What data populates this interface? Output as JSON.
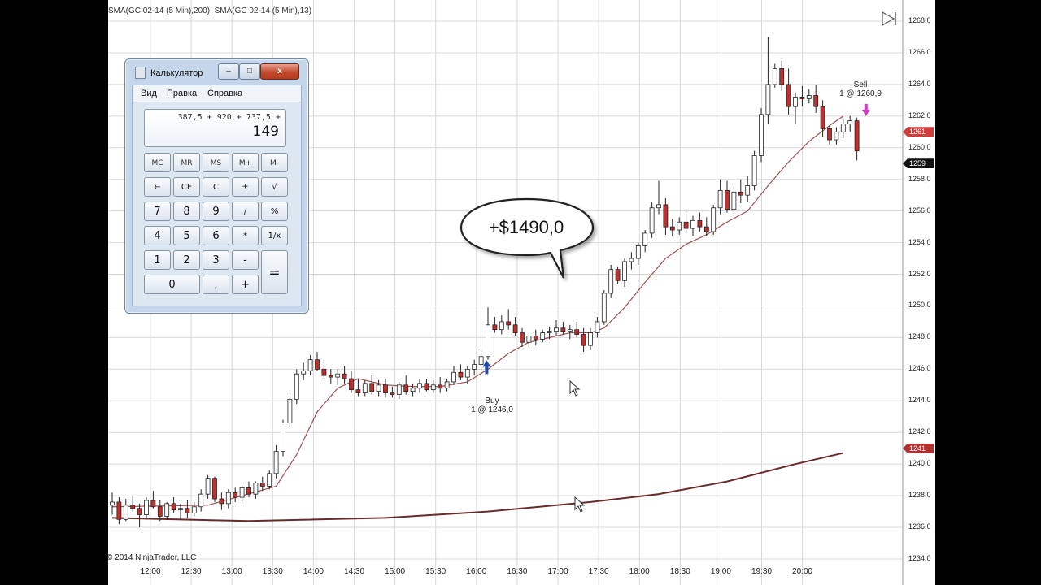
{
  "chart": {
    "indicator_label": "SMA(GC 02-14 (5 Min),200), SMA(GC 02-14 (5 Min),13)",
    "copyright": "© 2014 NinjaTrader, LLC",
    "profit_bubble": "+$1490,0",
    "buy_marker": {
      "label": "Buy",
      "detail": "1 @ 1246,0"
    },
    "sell_marker": {
      "label": "Sell",
      "detail": "1 @ 1260,9"
    },
    "price_ticks": [
      "1268,0",
      "1266,0",
      "1264,0",
      "1262,0",
      "1260,0",
      "1258,0",
      "1256,0",
      "1254,0",
      "1252,0",
      "1250,0",
      "1248,0",
      "1246,0",
      "1244,0",
      "1242,0",
      "1240,0",
      "1238,0",
      "1236,0",
      "1234,0"
    ],
    "price_tags": [
      {
        "text": "1261",
        "color": "#d23c3c"
      },
      {
        "text": "1259",
        "color": "#111111"
      },
      {
        "text": "1241",
        "color": "#b03030"
      }
    ],
    "time_ticks": [
      "12:00",
      "12:30",
      "13:00",
      "13:30",
      "14:00",
      "14:30",
      "15:00",
      "15:30",
      "16:00",
      "16:30",
      "17:00",
      "17:30",
      "18:00",
      "18:30",
      "19:00",
      "19:30",
      "20:00"
    ],
    "colors": {
      "up": "#ffffff",
      "down": "#c0302f",
      "wick": "#222222",
      "sma13": "#a05050",
      "sma200": "#6b2a2a",
      "grid": "#d8d8d8",
      "buy_arrow": "#1e4fb0",
      "sell_arrow": "#d03cc4"
    }
  },
  "chart_data": {
    "type": "candlestick",
    "xlabel": "",
    "ylabel": "",
    "ylim": [
      1234,
      1268
    ],
    "candles": [
      [
        1237.4,
        1238.2,
        1236.8,
        1237.6
      ],
      [
        1237.6,
        1237.9,
        1236.2,
        1236.5
      ],
      [
        1236.5,
        1237.8,
        1236.4,
        1237.4
      ],
      [
        1237.4,
        1238.0,
        1237.0,
        1237.2
      ],
      [
        1237.2,
        1237.5,
        1236.0,
        1236.8
      ],
      [
        1236.8,
        1237.9,
        1236.5,
        1237.7
      ],
      [
        1237.7,
        1238.3,
        1237.2,
        1237.3
      ],
      [
        1237.3,
        1237.7,
        1236.4,
        1236.7
      ],
      [
        1236.7,
        1237.6,
        1236.5,
        1237.5
      ],
      [
        1237.5,
        1237.9,
        1236.9,
        1237.1
      ],
      [
        1237.1,
        1237.5,
        1236.5,
        1237.2
      ],
      [
        1237.2,
        1237.7,
        1236.6,
        1236.9
      ],
      [
        1236.9,
        1237.6,
        1236.7,
        1237.3
      ],
      [
        1237.3,
        1238.4,
        1237.0,
        1238.1
      ],
      [
        1238.1,
        1239.3,
        1237.8,
        1239.1
      ],
      [
        1239.1,
        1239.2,
        1237.6,
        1237.8
      ],
      [
        1237.8,
        1238.2,
        1237.1,
        1237.5
      ],
      [
        1237.5,
        1238.4,
        1237.2,
        1238.2
      ],
      [
        1238.2,
        1238.5,
        1237.6,
        1237.9
      ],
      [
        1237.9,
        1238.7,
        1237.5,
        1238.5
      ],
      [
        1238.5,
        1238.9,
        1237.9,
        1238.1
      ],
      [
        1238.1,
        1238.9,
        1237.8,
        1238.8
      ],
      [
        1238.8,
        1239.2,
        1238.3,
        1238.6
      ],
      [
        1238.6,
        1239.6,
        1238.4,
        1239.4
      ],
      [
        1239.4,
        1241.2,
        1239.1,
        1240.8
      ],
      [
        1240.8,
        1242.8,
        1240.5,
        1242.6
      ],
      [
        1242.6,
        1244.3,
        1242.3,
        1244.1
      ],
      [
        1244.1,
        1246.0,
        1243.8,
        1245.7
      ],
      [
        1245.7,
        1246.4,
        1245.3,
        1245.9
      ],
      [
        1245.9,
        1246.9,
        1245.6,
        1246.6
      ],
      [
        1246.6,
        1247.1,
        1245.9,
        1246.0
      ],
      [
        1246.0,
        1246.6,
        1245.4,
        1245.6
      ],
      [
        1245.6,
        1246.0,
        1245.1,
        1245.5
      ],
      [
        1245.5,
        1246.0,
        1245.0,
        1245.7
      ],
      [
        1245.7,
        1246.2,
        1245.1,
        1245.4
      ],
      [
        1245.4,
        1245.9,
        1244.5,
        1244.7
      ],
      [
        1244.7,
        1245.4,
        1244.3,
        1244.5
      ],
      [
        1244.5,
        1245.3,
        1244.3,
        1245.1
      ],
      [
        1245.1,
        1245.6,
        1244.4,
        1244.6
      ],
      [
        1244.6,
        1245.3,
        1244.3,
        1245.0
      ],
      [
        1245.0,
        1245.4,
        1244.2,
        1244.5
      ],
      [
        1244.5,
        1244.9,
        1244.2,
        1244.4
      ],
      [
        1244.4,
        1245.2,
        1244.1,
        1245.0
      ],
      [
        1245.0,
        1245.6,
        1244.4,
        1244.6
      ],
      [
        1244.6,
        1245.1,
        1244.3,
        1244.8
      ],
      [
        1244.8,
        1245.4,
        1244.5,
        1245.1
      ],
      [
        1245.1,
        1245.4,
        1244.6,
        1244.7
      ],
      [
        1244.7,
        1245.3,
        1244.5,
        1245.0
      ],
      [
        1245.0,
        1245.5,
        1244.5,
        1244.8
      ],
      [
        1244.8,
        1245.4,
        1244.6,
        1245.2
      ],
      [
        1245.2,
        1246.2,
        1245.0,
        1245.8
      ],
      [
        1245.8,
        1246.3,
        1245.3,
        1245.5
      ],
      [
        1245.5,
        1246.2,
        1245.1,
        1246.0
      ],
      [
        1246.0,
        1246.6,
        1245.6,
        1246.3
      ],
      [
        1246.3,
        1247.2,
        1245.8,
        1246.8
      ],
      [
        1246.8,
        1249.9,
        1246.6,
        1248.8
      ],
      [
        1248.8,
        1249.3,
        1248.3,
        1248.5
      ],
      [
        1248.5,
        1249.4,
        1248.2,
        1249.0
      ],
      [
        1249.0,
        1249.8,
        1248.5,
        1248.8
      ],
      [
        1248.8,
        1249.3,
        1248.1,
        1248.3
      ],
      [
        1248.3,
        1248.6,
        1247.4,
        1247.7
      ],
      [
        1247.7,
        1248.3,
        1247.4,
        1248.1
      ],
      [
        1248.1,
        1248.5,
        1247.5,
        1247.9
      ],
      [
        1247.9,
        1248.5,
        1247.7,
        1248.3
      ],
      [
        1248.3,
        1248.7,
        1247.9,
        1248.4
      ],
      [
        1248.4,
        1249.1,
        1248.1,
        1248.6
      ],
      [
        1248.6,
        1249.0,
        1248.2,
        1248.4
      ],
      [
        1248.4,
        1248.8,
        1247.9,
        1248.5
      ],
      [
        1248.5,
        1249.0,
        1248.0,
        1248.2
      ],
      [
        1248.2,
        1248.6,
        1247.1,
        1247.5
      ],
      [
        1247.5,
        1248.6,
        1247.2,
        1248.3
      ],
      [
        1248.3,
        1249.3,
        1248.0,
        1249.0
      ],
      [
        1249.0,
        1251.0,
        1248.8,
        1250.8
      ],
      [
        1250.8,
        1252.6,
        1250.5,
        1252.3
      ],
      [
        1252.3,
        1252.5,
        1251.4,
        1251.6
      ],
      [
        1251.6,
        1253.0,
        1251.2,
        1252.8
      ],
      [
        1252.8,
        1253.4,
        1252.3,
        1253.0
      ],
      [
        1253.0,
        1254.0,
        1252.6,
        1253.8
      ],
      [
        1253.8,
        1254.8,
        1253.4,
        1254.6
      ],
      [
        1254.6,
        1256.6,
        1254.3,
        1256.2
      ],
      [
        1256.2,
        1257.9,
        1255.8,
        1256.4
      ],
      [
        1256.4,
        1256.8,
        1254.5,
        1255.0
      ],
      [
        1255.0,
        1255.5,
        1254.4,
        1254.8
      ],
      [
        1254.8,
        1255.6,
        1254.5,
        1255.3
      ],
      [
        1255.3,
        1256.0,
        1254.6,
        1254.9
      ],
      [
        1254.9,
        1255.7,
        1254.4,
        1255.4
      ],
      [
        1255.4,
        1255.9,
        1254.7,
        1255.0
      ],
      [
        1255.0,
        1255.6,
        1254.4,
        1254.7
      ],
      [
        1254.7,
        1256.4,
        1254.5,
        1256.2
      ],
      [
        1256.2,
        1258.0,
        1255.8,
        1257.3
      ],
      [
        1257.3,
        1257.9,
        1255.9,
        1256.1
      ],
      [
        1256.1,
        1257.6,
        1255.8,
        1257.2
      ],
      [
        1257.2,
        1258.0,
        1256.5,
        1257.0
      ],
      [
        1257.0,
        1258.2,
        1256.6,
        1257.6
      ],
      [
        1257.6,
        1259.8,
        1257.3,
        1259.5
      ],
      [
        1259.5,
        1262.5,
        1259.1,
        1262.1
      ],
      [
        1262.1,
        1267.0,
        1261.5,
        1264.0
      ],
      [
        1264.0,
        1265.3,
        1263.8,
        1265.0
      ],
      [
        1265.0,
        1265.5,
        1263.6,
        1264.0
      ],
      [
        1264.0,
        1265.0,
        1262.1,
        1262.6
      ],
      [
        1262.6,
        1263.5,
        1261.5,
        1263.2
      ],
      [
        1263.2,
        1263.9,
        1262.6,
        1263.1
      ],
      [
        1263.1,
        1263.7,
        1262.8,
        1263.3
      ],
      [
        1263.3,
        1264.0,
        1262.2,
        1262.6
      ],
      [
        1262.6,
        1263.0,
        1260.7,
        1261.2
      ],
      [
        1261.2,
        1261.4,
        1260.2,
        1260.5
      ],
      [
        1260.5,
        1261.3,
        1260.2,
        1261.0
      ],
      [
        1261.0,
        1261.8,
        1260.6,
        1261.5
      ],
      [
        1261.5,
        1262.0,
        1261.0,
        1261.7
      ],
      [
        1261.7,
        1261.9,
        1259.2,
        1259.8
      ]
    ],
    "sma13": [
      [
        0,
        1237.3
      ],
      [
        14,
        1237.4
      ],
      [
        24,
        1238.6
      ],
      [
        27,
        1240.6
      ],
      [
        30,
        1243.3
      ],
      [
        33,
        1244.8
      ],
      [
        36,
        1245.4
      ],
      [
        40,
        1245.0
      ],
      [
        44,
        1244.9
      ],
      [
        48,
        1244.9
      ],
      [
        52,
        1245.2
      ],
      [
        55,
        1246.0
      ],
      [
        58,
        1247.0
      ],
      [
        61,
        1247.7
      ],
      [
        64,
        1248.0
      ],
      [
        67,
        1248.3
      ],
      [
        70,
        1248.3
      ],
      [
        72,
        1248.6
      ],
      [
        75,
        1249.9
      ],
      [
        78,
        1251.5
      ],
      [
        81,
        1253.0
      ],
      [
        84,
        1253.9
      ],
      [
        87,
        1254.5
      ],
      [
        90,
        1255.3
      ],
      [
        93,
        1256.0
      ],
      [
        96,
        1257.6
      ],
      [
        99,
        1259.1
      ],
      [
        102,
        1260.4
      ],
      [
        105,
        1261.4
      ],
      [
        107,
        1262.0
      ]
    ],
    "sma200": [
      [
        0,
        1236.6
      ],
      [
        20,
        1236.4
      ],
      [
        40,
        1236.6
      ],
      [
        55,
        1237.0
      ],
      [
        70,
        1237.6
      ],
      [
        80,
        1238.1
      ],
      [
        90,
        1238.9
      ],
      [
        100,
        1240.0
      ],
      [
        107,
        1240.7
      ]
    ],
    "buy": {
      "label": "Buy",
      "detail": "1 @ 1246,0"
    },
    "sell": {
      "label": "Sell",
      "detail": "1 @ 1260,9"
    }
  },
  "calculator": {
    "title": "Калькулятор",
    "menu": [
      "Вид",
      "Правка",
      "Справка"
    ],
    "expression": "387,5 + 920 + 737,5 +",
    "value": "149",
    "memory_keys": [
      "MC",
      "MR",
      "MS",
      "M+",
      "M-"
    ],
    "keys_row2": [
      "←",
      "CE",
      "C",
      "±",
      "√"
    ],
    "keys_row3": [
      "7",
      "8",
      "9",
      "/",
      "%"
    ],
    "keys_row4": [
      "4",
      "5",
      "6",
      "*",
      "1/x"
    ],
    "keys_row5": [
      "1",
      "2",
      "3",
      "-"
    ],
    "keys_row6": [
      "0",
      ",",
      "+"
    ],
    "equals": "=",
    "window_buttons": {
      "minimize": "–",
      "maximize": "□",
      "close": "x"
    }
  }
}
